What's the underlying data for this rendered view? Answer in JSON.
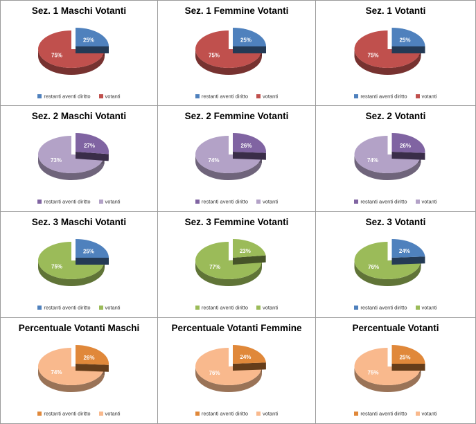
{
  "chart_data": [
    {
      "type": "pie",
      "title": "Sez. 1 Maschi Votanti",
      "categories": [
        "restanti aventi diritto",
        "votanti"
      ],
      "values": [
        25,
        75
      ],
      "labels": [
        "25%",
        "75%"
      ],
      "colors": [
        "#4f81bd",
        "#c0504d"
      ],
      "legend_colors": [
        "#4f81bd",
        "#c0504d"
      ],
      "legend_placement": "bottom"
    },
    {
      "type": "pie",
      "title": "Sez. 1  Femmine Votanti",
      "categories": [
        "restanti aventi diritto",
        "votanti"
      ],
      "values": [
        25,
        75
      ],
      "labels": [
        "25%",
        "75%"
      ],
      "colors": [
        "#4f81bd",
        "#c0504d"
      ],
      "legend_colors": [
        "#4f81bd",
        "#c0504d"
      ],
      "legend_placement": "bottom"
    },
    {
      "type": "pie",
      "title": "Sez. 1  Votanti",
      "categories": [
        "restanti aventi diritto",
        "votanti"
      ],
      "values": [
        25,
        75
      ],
      "labels": [
        "25%",
        "75%"
      ],
      "colors": [
        "#4f81bd",
        "#c0504d"
      ],
      "legend_colors": [
        "#4f81bd",
        "#c0504d"
      ],
      "legend_placement": "bottom"
    },
    {
      "type": "pie",
      "title": "Sez. 2  Maschi Votanti",
      "categories": [
        "restanti aventi diritto",
        "votanti"
      ],
      "values": [
        27,
        73
      ],
      "labels": [
        "27%",
        "73%"
      ],
      "colors": [
        "#8064a2",
        "#b3a2c7"
      ],
      "legend_colors": [
        "#8064a2",
        "#b3a2c7"
      ],
      "legend_placement": "bottom"
    },
    {
      "type": "pie",
      "title": "Sez. 2 Femmine Votanti",
      "categories": [
        "restanti aventi diritto",
        "votanti"
      ],
      "values": [
        26,
        74
      ],
      "labels": [
        "26%",
        "74%"
      ],
      "colors": [
        "#8064a2",
        "#b3a2c7"
      ],
      "legend_colors": [
        "#8064a2",
        "#b3a2c7"
      ],
      "legend_placement": "bottom"
    },
    {
      "type": "pie",
      "title": "Sez. 2  Votanti",
      "categories": [
        "restanti aventi diritto",
        "votanti"
      ],
      "values": [
        26,
        74
      ],
      "labels": [
        "26%",
        "74%"
      ],
      "colors": [
        "#8064a2",
        "#b3a2c7"
      ],
      "legend_colors": [
        "#8064a2",
        "#b3a2c7"
      ],
      "legend_placement": "bottom"
    },
    {
      "type": "pie",
      "title": "Sez. 3 Maschi Votanti",
      "categories": [
        "restanti aventi diritto",
        "votanti"
      ],
      "values": [
        25,
        75
      ],
      "labels": [
        "25%",
        "75%"
      ],
      "colors": [
        "#4f81bd",
        "#9bbb59"
      ],
      "legend_colors": [
        "#4f81bd",
        "#9bbb59"
      ],
      "legend_placement": "bottom"
    },
    {
      "type": "pie",
      "title": "Sez. 3  Femmine Votanti",
      "categories": [
        "restanti aventi diritto",
        "votanti"
      ],
      "values": [
        23,
        77
      ],
      "labels": [
        "23%",
        "77%"
      ],
      "colors": [
        "#9bbb59",
        "#9bbb59"
      ],
      "legend_colors": [
        "#9bbb59",
        "#9bbb59"
      ],
      "legend_placement": "bottom"
    },
    {
      "type": "pie",
      "title": "Sez. 3  Votanti",
      "categories": [
        "restanti aventi diritto",
        "votanti"
      ],
      "values": [
        24,
        76
      ],
      "labels": [
        "24%",
        "76%"
      ],
      "colors": [
        "#4f81bd",
        "#9bbb59"
      ],
      "legend_colors": [
        "#4f81bd",
        "#9bbb59"
      ],
      "legend_placement": "bottom"
    },
    {
      "type": "pie",
      "title": "Percentuale  Votanti Maschi",
      "categories": [
        "restanti aventi diritto",
        "votanti"
      ],
      "values": [
        26,
        74
      ],
      "labels": [
        "26%",
        "74%"
      ],
      "colors": [
        "#e0883a",
        "#f9b98d"
      ],
      "legend_colors": [
        "#e0883a",
        "#f9b98d"
      ],
      "legend_placement": "bottom"
    },
    {
      "type": "pie",
      "title": "Percentuale Votanti Femmine",
      "categories": [
        "restanti aventi diritto",
        "votanti"
      ],
      "values": [
        24,
        76
      ],
      "labels": [
        "24%",
        "76%"
      ],
      "colors": [
        "#e0883a",
        "#f9b98d"
      ],
      "legend_colors": [
        "#e0883a",
        "#f9b98d"
      ],
      "legend_placement": "bottom"
    },
    {
      "type": "pie",
      "title": "Percentuale Votanti",
      "categories": [
        "restanti aventi diritto",
        "votanti"
      ],
      "values": [
        25,
        75
      ],
      "labels": [
        "25%",
        "75%"
      ],
      "colors": [
        "#e0883a",
        "#f9b98d"
      ],
      "legend_colors": [
        "#e0883a",
        "#f9b98d"
      ],
      "legend_placement": "bottom"
    }
  ]
}
